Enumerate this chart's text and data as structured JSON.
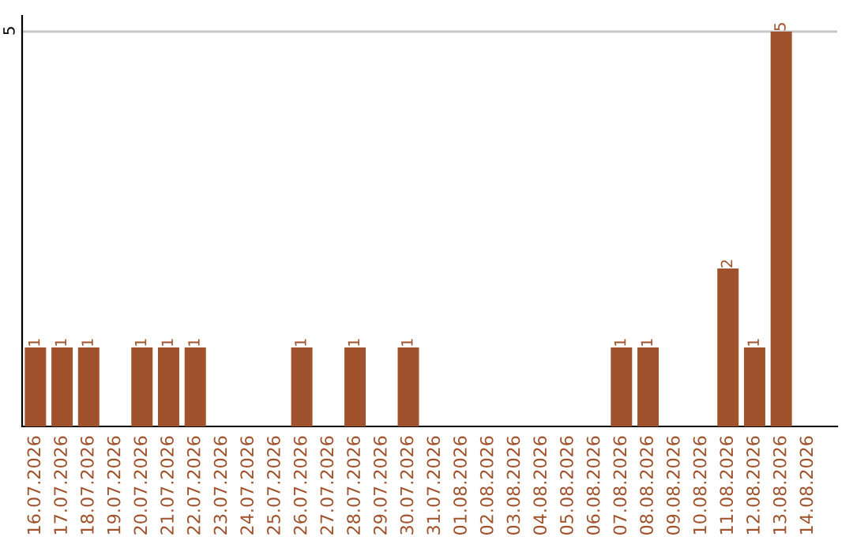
{
  "chart_data": {
    "type": "bar",
    "categories": [
      "16.07.2026",
      "17.07.2026",
      "18.07.2026",
      "19.07.2026",
      "20.07.2026",
      "21.07.2026",
      "22.07.2026",
      "23.07.2026",
      "24.07.2026",
      "25.07.2026",
      "26.07.2026",
      "27.07.2026",
      "28.07.2026",
      "29.07.2026",
      "30.07.2026",
      "31.07.2026",
      "01.08.2026",
      "02.08.2026",
      "03.08.2026",
      "04.08.2026",
      "05.08.2026",
      "06.08.2026",
      "07.08.2026",
      "08.08.2026",
      "09.08.2026",
      "10.08.2026",
      "11.08.2026",
      "12.08.2026",
      "13.08.2026",
      "14.08.2026"
    ],
    "values": [
      1,
      1,
      1,
      0,
      1,
      1,
      1,
      0,
      0,
      0,
      1,
      0,
      1,
      0,
      1,
      0,
      0,
      0,
      0,
      0,
      0,
      0,
      1,
      1,
      0,
      0,
      2,
      1,
      5,
      0
    ],
    "value_labels": [
      "1",
      "1",
      "1",
      null,
      "1",
      "1",
      "1",
      null,
      null,
      null,
      "1",
      null,
      "1",
      null,
      "1",
      null,
      null,
      null,
      null,
      null,
      null,
      null,
      "1",
      "1",
      null,
      null,
      "2",
      "1",
      "5",
      null
    ],
    "color": "#a0522d",
    "ylim": [
      0,
      5.2
    ],
    "yticks": [
      5
    ],
    "grid": "y"
  }
}
